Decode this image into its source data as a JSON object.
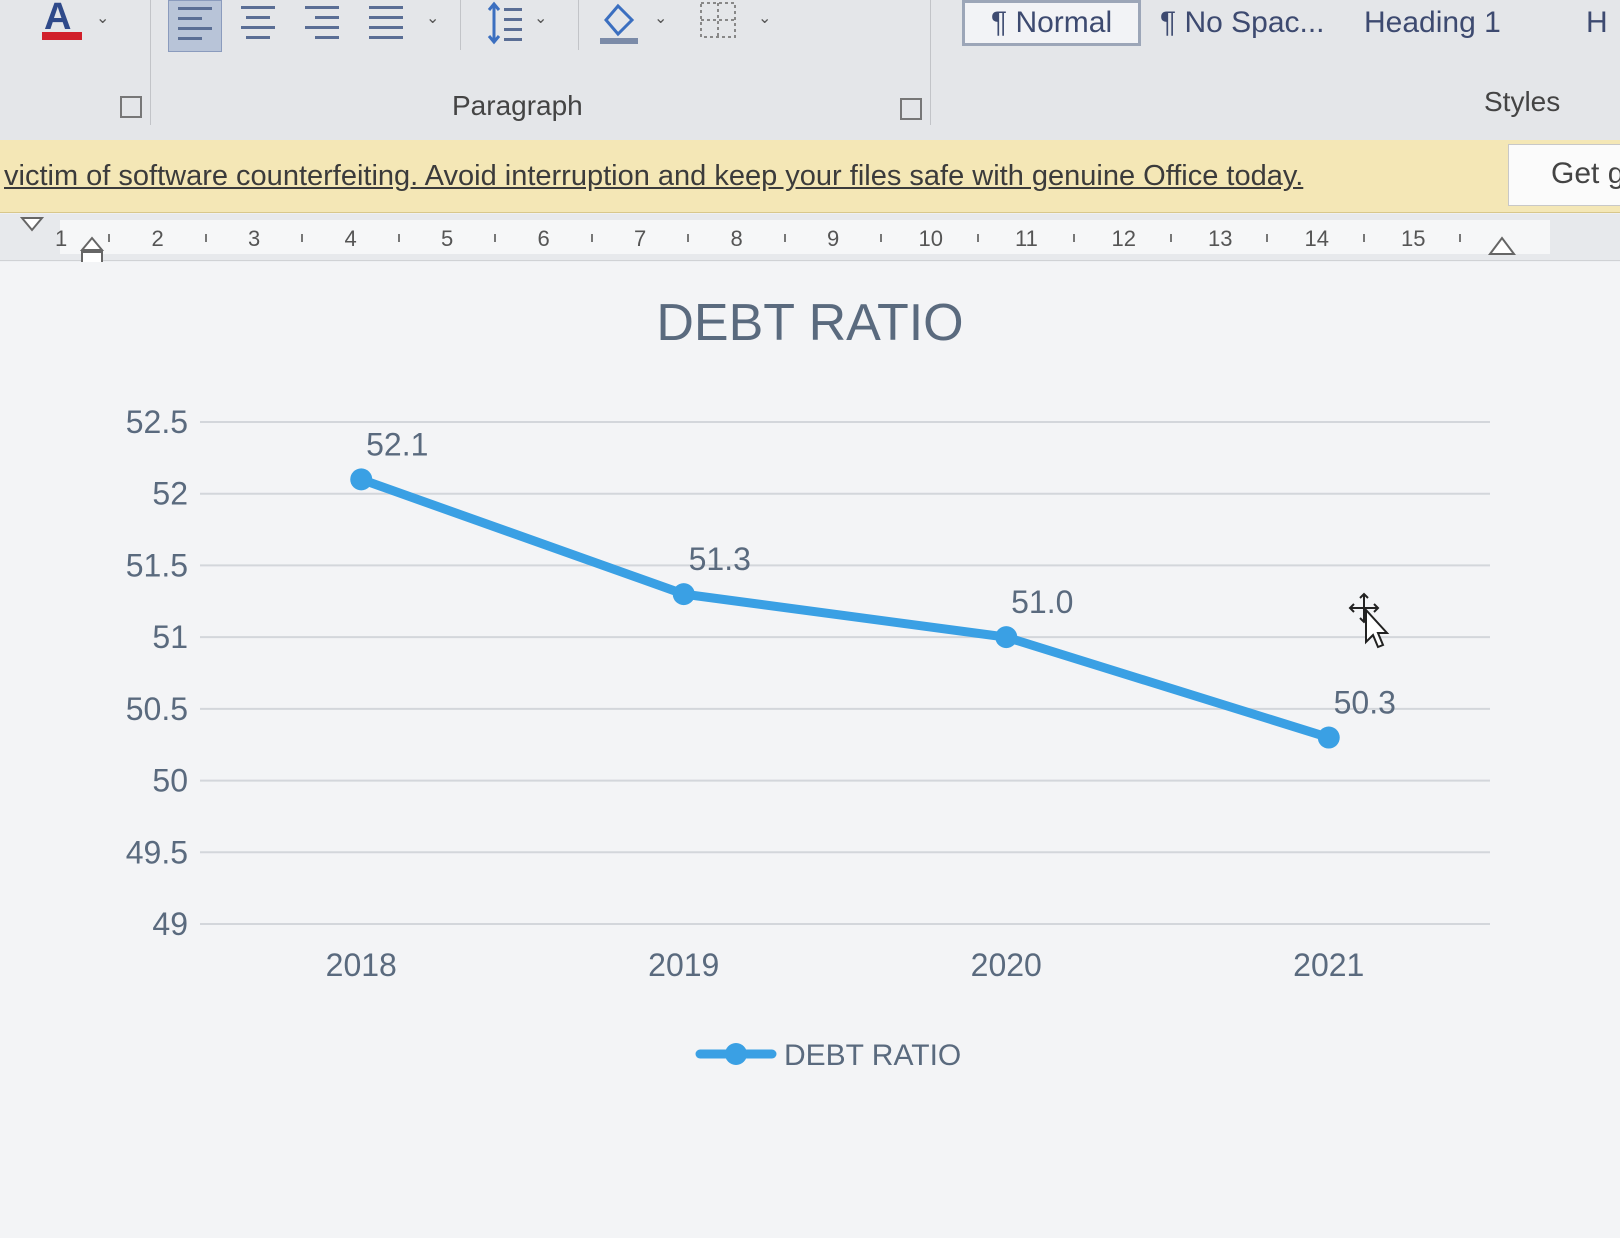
{
  "ribbon": {
    "font_color_glyph": "A",
    "styles": [
      {
        "label": "¶ Normal",
        "selected": true
      },
      {
        "label": "¶ No Spac...",
        "selected": false
      },
      {
        "label": "Heading 1",
        "selected": false
      },
      {
        "label": "H",
        "selected": false
      }
    ],
    "groups": {
      "paragraph": "Paragraph",
      "styles": "Styles"
    }
  },
  "notice": {
    "message": "victim of software counterfeiting. Avoid interruption and keep your files safe with genuine Office today.",
    "button_label": "Get g"
  },
  "ruler": {
    "marks": [
      "1",
      "2",
      "3",
      "4",
      "5",
      "6",
      "7",
      "8",
      "9",
      "10",
      "11",
      "12",
      "13",
      "14",
      "15"
    ]
  },
  "colors": {
    "series": "#3aa0e4",
    "text": "#5a6a7e",
    "grid": "#d3d6db"
  },
  "chart_data": {
    "type": "line",
    "title": "DEBT RATIO",
    "categories": [
      "2018",
      "2019",
      "2020",
      "2021"
    ],
    "series": [
      {
        "name": "DEBT RATIO",
        "values": [
          52.1,
          51.3,
          51.0,
          50.3
        ],
        "labels": [
          "52.1",
          "51.3",
          "51.0",
          "50.3"
        ]
      }
    ],
    "yticks": [
      "52.5",
      "52",
      "51.5",
      "51",
      "50.5",
      "50",
      "49.5",
      "49"
    ],
    "ylim": [
      49,
      52.5
    ],
    "grid": true,
    "legend": "bottom"
  }
}
